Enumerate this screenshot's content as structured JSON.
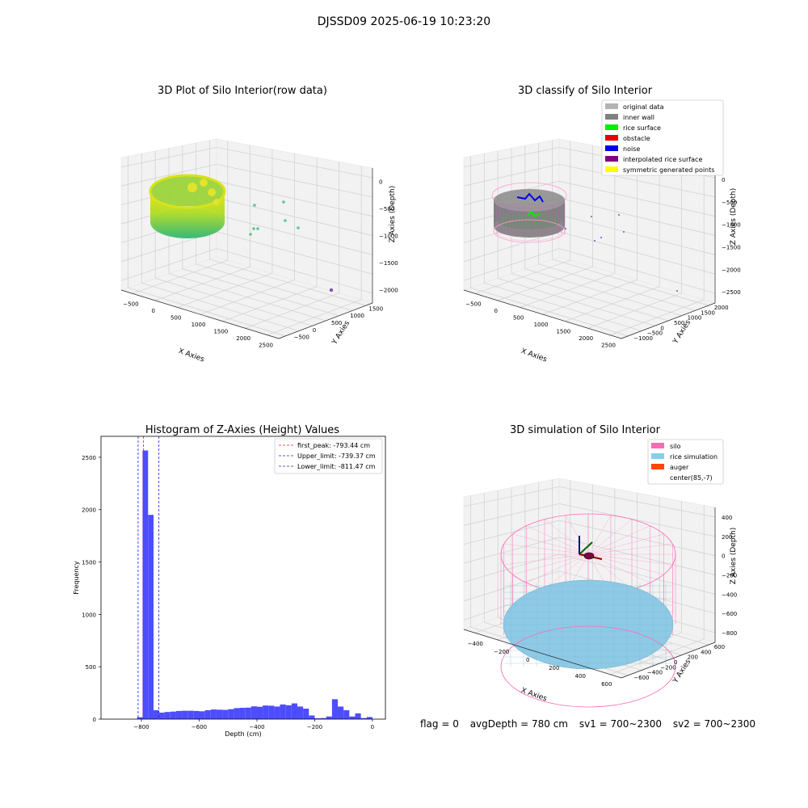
{
  "figure": {
    "suptitle": "DJSSD09 2025-06-19 10:23:20",
    "flag_text": "flag = 0",
    "avg_text": "avgDepth = 780 cm",
    "sv1_text": "sv1 = 700~2300",
    "sv2_text": "sv2 = 700~2300"
  },
  "chart_data": [
    {
      "type": "scatter",
      "projection": "3d",
      "title": "3D Plot of Silo Interior(row data)",
      "xlabel": "X Axies",
      "ylabel": "Y Axies",
      "zlabel": "Z Axies (Depth)",
      "x_ticks": [
        "−500",
        "0",
        "500",
        "1000",
        "1500",
        "2000",
        "2500"
      ],
      "y_ticks": [
        "−500",
        "0",
        "500",
        "1000",
        "1500"
      ],
      "z_ticks": [
        "0",
        "−500",
        "−1000",
        "−1500",
        "−2000"
      ],
      "grid": true,
      "colormap": "viridis",
      "outlier_points": [
        [
          1150,
          600,
          -1100
        ],
        [
          1280,
          650,
          -950
        ],
        [
          1300,
          500,
          -1250
        ],
        [
          1100,
          400,
          -1400
        ],
        [
          1150,
          350,
          -1500
        ],
        [
          1500,
          700,
          -1400
        ],
        [
          2200,
          1650,
          -2050
        ]
      ]
    },
    {
      "type": "scatter",
      "projection": "3d",
      "title": "3D classify of Silo Interior",
      "xlabel": "X Axies",
      "ylabel": "Y Axies",
      "zlabel": "Z Axies (Depth)",
      "x_ticks": [
        "−500",
        "0",
        "500",
        "1000",
        "1500",
        "2000",
        "2500"
      ],
      "y_ticks": [
        "−1000",
        "−500",
        "0",
        "500",
        "1000",
        "1500",
        "2000"
      ],
      "z_ticks": [
        "0",
        "−500",
        "−1000",
        "−1500",
        "−2000",
        "−2500"
      ],
      "grid": true,
      "legend_position": "top-right",
      "legend": [
        {
          "label": "original data",
          "color": "#b3b3b3"
        },
        {
          "label": "inner wall",
          "color": "#808080"
        },
        {
          "label": "rice surface",
          "color": "#00ee00"
        },
        {
          "label": "obstacle",
          "color": "#ee0000"
        },
        {
          "label": "noise",
          "color": "#0000ee"
        },
        {
          "label": "interpolated rice surface",
          "color": "#800080"
        },
        {
          "label": "symmetric generated points",
          "color": "#ffff00"
        }
      ]
    },
    {
      "type": "bar",
      "title": "Histogram of Z-Axies (Height) Values",
      "xlabel": "Depth (cm)",
      "ylabel": "Frequency",
      "xlim": [
        -940,
        45
      ],
      "ylim": [
        0,
        2700
      ],
      "x_ticks": [
        -800,
        -600,
        -400,
        -200,
        0
      ],
      "x_tick_labels": [
        "−800",
        "−600",
        "−400",
        "−200",
        "0"
      ],
      "y_ticks": [
        0,
        500,
        1000,
        1500,
        2000,
        2500
      ],
      "y_tick_labels": [
        "0",
        "500",
        "1000",
        "1500",
        "2000",
        "2500"
      ],
      "bar_color": "#4d4dff",
      "legend_position": "top-right",
      "bins": [
        {
          "x0": -815,
          "x1": -796,
          "count": 18
        },
        {
          "x0": -796,
          "x1": -777,
          "count": 2565
        },
        {
          "x0": -777,
          "x1": -758,
          "count": 1950
        },
        {
          "x0": -758,
          "x1": -739,
          "count": 85
        },
        {
          "x0": -739,
          "x1": -720,
          "count": 62
        },
        {
          "x0": -720,
          "x1": -700,
          "count": 68
        },
        {
          "x0": -700,
          "x1": -680,
          "count": 72
        },
        {
          "x0": -680,
          "x1": -660,
          "count": 78
        },
        {
          "x0": -660,
          "x1": -640,
          "count": 80
        },
        {
          "x0": -640,
          "x1": -620,
          "count": 80
        },
        {
          "x0": -620,
          "x1": -600,
          "count": 78
        },
        {
          "x0": -600,
          "x1": -580,
          "count": 75
        },
        {
          "x0": -580,
          "x1": -560,
          "count": 85
        },
        {
          "x0": -560,
          "x1": -540,
          "count": 92
        },
        {
          "x0": -540,
          "x1": -520,
          "count": 90
        },
        {
          "x0": -520,
          "x1": -500,
          "count": 88
        },
        {
          "x0": -500,
          "x1": -480,
          "count": 95
        },
        {
          "x0": -480,
          "x1": -460,
          "count": 105
        },
        {
          "x0": -460,
          "x1": -440,
          "count": 108
        },
        {
          "x0": -440,
          "x1": -420,
          "count": 110
        },
        {
          "x0": -420,
          "x1": -400,
          "count": 122
        },
        {
          "x0": -400,
          "x1": -380,
          "count": 118
        },
        {
          "x0": -380,
          "x1": -360,
          "count": 130
        },
        {
          "x0": -360,
          "x1": -340,
          "count": 128
        },
        {
          "x0": -340,
          "x1": -320,
          "count": 120
        },
        {
          "x0": -320,
          "x1": -300,
          "count": 140
        },
        {
          "x0": -300,
          "x1": -280,
          "count": 132
        },
        {
          "x0": -280,
          "x1": -260,
          "count": 150
        },
        {
          "x0": -260,
          "x1": -240,
          "count": 120
        },
        {
          "x0": -240,
          "x1": -220,
          "count": 100
        },
        {
          "x0": -220,
          "x1": -200,
          "count": 35
        },
        {
          "x0": -200,
          "x1": -180,
          "count": 8
        },
        {
          "x0": -180,
          "x1": -160,
          "count": 10
        },
        {
          "x0": -160,
          "x1": -140,
          "count": 25
        },
        {
          "x0": -140,
          "x1": -120,
          "count": 190
        },
        {
          "x0": -120,
          "x1": -100,
          "count": 120
        },
        {
          "x0": -100,
          "x1": -80,
          "count": 85
        },
        {
          "x0": -80,
          "x1": -60,
          "count": 25
        },
        {
          "x0": -60,
          "x1": -40,
          "count": 55
        },
        {
          "x0": -40,
          "x1": -20,
          "count": 10
        },
        {
          "x0": -20,
          "x1": 0,
          "count": 20
        }
      ],
      "vlines": [
        {
          "value": -793.44,
          "color": "#dd2222",
          "label": "first_peak: -793.44 cm"
        },
        {
          "value": -739.37,
          "color": "#2222cc",
          "label": "Upper_limit: -739.37 cm"
        },
        {
          "value": -811.47,
          "color": "#2222cc",
          "label": "Lower_limit: -811.47 cm"
        }
      ]
    },
    {
      "type": "surface",
      "projection": "3d",
      "title": "3D simulation of Silo Interior",
      "xlabel": "X Axies",
      "ylabel": "Y Axies",
      "zlabel": "Z Axies (Depth)",
      "x_ticks": [
        "−400",
        "−200",
        "0",
        "200",
        "400",
        "600"
      ],
      "y_ticks": [
        "−600",
        "−400",
        "−200",
        "0",
        "200",
        "400",
        "600"
      ],
      "z_ticks": [
        "400",
        "200",
        "0",
        "−200",
        "−400",
        "−600",
        "−800"
      ],
      "grid": true,
      "legend_position": "top-right",
      "legend": [
        {
          "label": "silo",
          "color": "#ff69b4"
        },
        {
          "label": "rice simulation",
          "color": "#87ceeb"
        },
        {
          "label": "auger",
          "color": "#ff4500"
        },
        {
          "label": "center(85,-7)",
          "color": ""
        }
      ]
    }
  ]
}
